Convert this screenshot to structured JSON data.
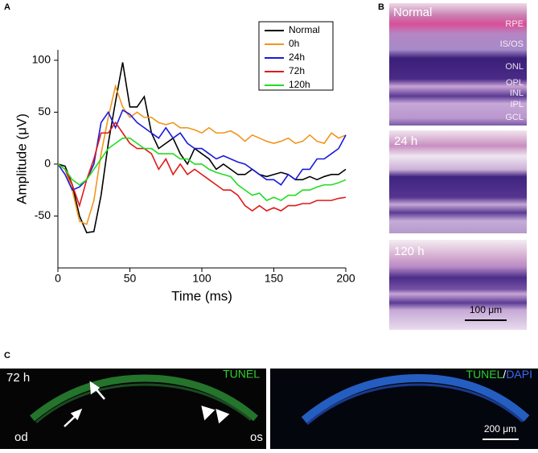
{
  "panels": {
    "a": "A",
    "b": "B",
    "c": "C"
  },
  "chart_data": {
    "type": "line",
    "xlabel": "Time (ms)",
    "ylabel": "Amplitude (μV)",
    "x": [
      0,
      5,
      10,
      15,
      20,
      25,
      30,
      35,
      40,
      45,
      50,
      55,
      60,
      65,
      70,
      75,
      80,
      85,
      90,
      95,
      100,
      105,
      110,
      115,
      120,
      125,
      130,
      135,
      140,
      145,
      150,
      155,
      160,
      165,
      170,
      175,
      180,
      185,
      190,
      195,
      200
    ],
    "series": [
      {
        "name": "Normal",
        "color": "#000000",
        "values": [
          0,
          -2,
          -20,
          -50,
          -66,
          -65,
          -30,
          20,
          60,
          98,
          55,
          55,
          65,
          30,
          15,
          20,
          25,
          10,
          0,
          15,
          10,
          5,
          -5,
          0,
          -5,
          -10,
          -10,
          -5,
          -10,
          -12,
          -10,
          -8,
          -10,
          -15,
          -15,
          -12,
          -15,
          -12,
          -10,
          -10,
          -5
        ]
      },
      {
        "name": "0h",
        "color": "#f0961e",
        "values": [
          0,
          -5,
          -25,
          -55,
          -58,
          -35,
          10,
          45,
          75,
          55,
          45,
          50,
          45,
          45,
          40,
          38,
          40,
          35,
          35,
          33,
          30,
          35,
          30,
          30,
          32,
          28,
          22,
          28,
          25,
          22,
          20,
          22,
          25,
          20,
          22,
          28,
          22,
          20,
          30,
          25,
          28
        ]
      },
      {
        "name": "24h",
        "color": "#1a1adc",
        "values": [
          0,
          -10,
          -25,
          -22,
          -15,
          0,
          40,
          50,
          35,
          52,
          48,
          40,
          35,
          30,
          25,
          35,
          25,
          30,
          20,
          15,
          15,
          10,
          5,
          8,
          5,
          2,
          0,
          -5,
          -10,
          -15,
          -15,
          -20,
          -10,
          -15,
          -5,
          -5,
          5,
          5,
          10,
          15,
          28
        ]
      },
      {
        "name": "72h",
        "color": "#e01a1a",
        "values": [
          0,
          -5,
          -20,
          -40,
          -15,
          5,
          30,
          30,
          40,
          30,
          20,
          15,
          15,
          10,
          -5,
          5,
          -10,
          0,
          -10,
          -5,
          -10,
          -15,
          -20,
          -25,
          -25,
          -30,
          -40,
          -45,
          -40,
          -45,
          -42,
          -45,
          -40,
          -40,
          -38,
          -38,
          -35,
          -35,
          -35,
          -33,
          -32
        ]
      },
      {
        "name": "120h",
        "color": "#22dd22",
        "values": [
          0,
          -5,
          -15,
          -20,
          -15,
          -5,
          5,
          15,
          20,
          25,
          25,
          20,
          15,
          15,
          10,
          10,
          10,
          5,
          5,
          0,
          0,
          -5,
          -8,
          -10,
          -12,
          -20,
          -25,
          -30,
          -28,
          -35,
          -32,
          -35,
          -30,
          -30,
          -25,
          -25,
          -22,
          -20,
          -20,
          -18,
          -15
        ]
      }
    ],
    "xlim": [
      0,
      200
    ],
    "xticks": [
      0,
      50,
      100,
      150,
      200
    ],
    "ylim": [
      -100,
      110
    ],
    "yticks": [
      -50,
      0,
      50,
      100
    ],
    "grid": false,
    "legend": "upper right"
  },
  "histology": {
    "normal": {
      "label": "Normal",
      "layers": [
        "RPE",
        "IS/OS",
        "ONL",
        "OPL",
        "INL",
        "IPL",
        "GCL"
      ]
    },
    "h24": {
      "label": "24 h"
    },
    "h120": {
      "label": "120 h",
      "scale_bar": "100 μm"
    }
  },
  "tunel": {
    "time": "72 h",
    "left_label": "TUNEL",
    "od": "od",
    "os": "os",
    "right_label_1": "TUNEL",
    "separator": "/",
    "right_label_2": "DAPI",
    "scale_bar": "200 μm"
  }
}
